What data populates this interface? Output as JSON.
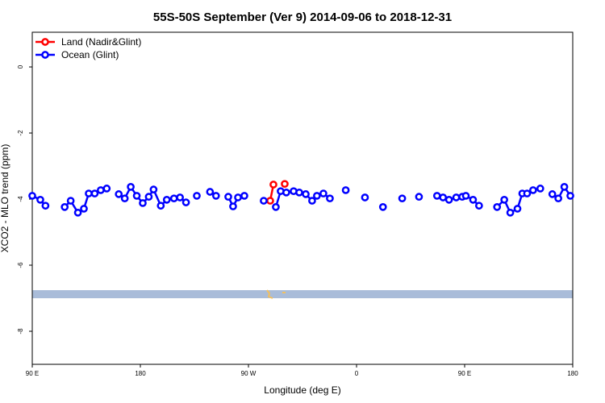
{
  "chart_data": {
    "type": "line",
    "title": "55S-50S September (Ver 9)   2014-09-06 to 2018-12-31",
    "xlabel": "Longitude (deg E)",
    "ylabel": "XCO2 - MLO trend (ppm)",
    "xlim": [
      90,
      540
    ],
    "xticks": [
      {
        "value": 90,
        "label": "90 E"
      },
      180,
      {
        "value": 270,
        "label": "90 W"
      },
      {
        "value": 360,
        "label": "0"
      },
      {
        "value": 450,
        "label": "90 E"
      },
      {
        "value": 540,
        "label": "180"
      }
    ],
    "ylim": [
      -9,
      1.05
    ],
    "yticks": [
      0,
      -2,
      -4,
      -6,
      -8
    ],
    "legend": "top-left",
    "series": [
      {
        "name": "Land (Nadir&Glint)",
        "color": "#ff0000",
        "x": [
          288.1,
          290.8,
          null,
          300.2
        ],
        "values": [
          -4.05,
          -3.56,
          null,
          -3.54
        ]
      },
      {
        "name": "Ocean (Glint)",
        "color": "#0000ff",
        "x": [
          90,
          96.7,
          101,
          null,
          117,
          122,
          128,
          133,
          137,
          142,
          147,
          152,
          null,
          162,
          167,
          172,
          177,
          182,
          187,
          191,
          197,
          202,
          208,
          213,
          218,
          null,
          227,
          null,
          238,
          243,
          null,
          253.2,
          257.2,
          261.3,
          266.6,
          null,
          282.7,
          null,
          292.8,
          296.8,
          301.5,
          307.6,
          312.3,
          317.7,
          323,
          327,
          332.4,
          337.8,
          null,
          351,
          null,
          367,
          null,
          382,
          null,
          398,
          null,
          412,
          null,
          427,
          432,
          437,
          443,
          448,
          451,
          457,
          462,
          null,
          477,
          483,
          488,
          494,
          498,
          502,
          507,
          513,
          null,
          523,
          528,
          533,
          538
        ],
        "values": [
          -3.9,
          -4.02,
          -4.2,
          null,
          -4.24,
          -4.05,
          -4.41,
          -4.29,
          -3.83,
          -3.83,
          -3.73,
          -3.68,
          null,
          -3.85,
          -3.98,
          -3.63,
          -3.9,
          -4.12,
          -3.93,
          -3.71,
          -4.2,
          -4.02,
          -3.98,
          -3.95,
          -4.1,
          null,
          -3.9,
          null,
          -3.78,
          -3.9,
          null,
          -3.93,
          -4.22,
          -3.95,
          -3.9,
          null,
          -4.05,
          null,
          -4.24,
          -3.76,
          -3.8,
          -3.76,
          -3.8,
          -3.85,
          -4.05,
          -3.9,
          -3.83,
          -3.98,
          null,
          -3.73,
          null,
          -3.95,
          null,
          -4.24,
          null,
          -3.98,
          null,
          -3.93,
          null,
          -3.9,
          -3.95,
          -4.02,
          -3.95,
          -3.93,
          -3.9,
          -4.02,
          -4.2,
          null,
          -4.24,
          -4.02,
          -4.41,
          -4.29,
          -3.83,
          -3.83,
          -3.73,
          -3.68,
          null,
          -3.85,
          -3.98,
          -3.63,
          -3.9
        ]
      }
    ]
  }
}
